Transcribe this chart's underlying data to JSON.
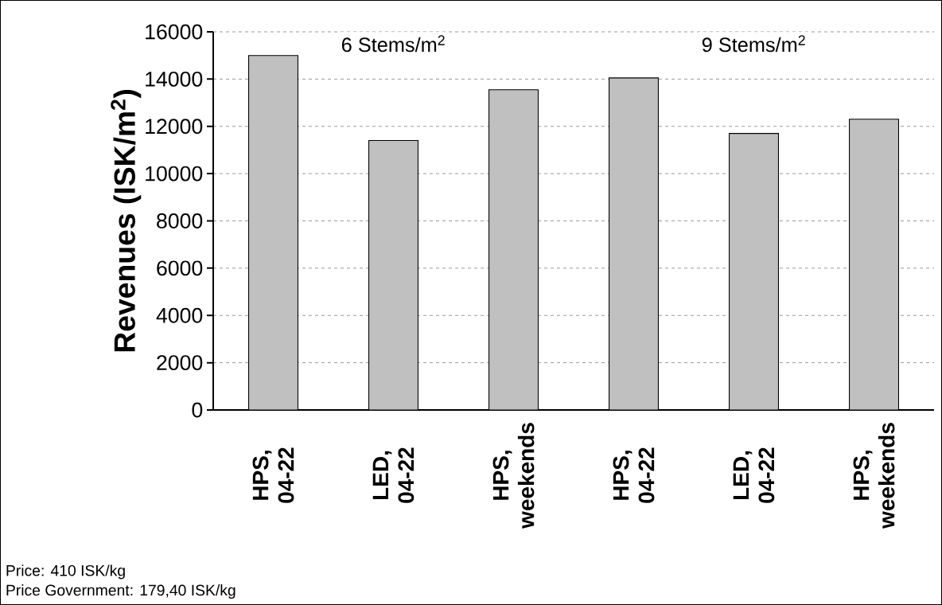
{
  "chart_data": {
    "type": "bar",
    "ylabel": "Revenues (ISK/m$^{2}$)",
    "categories": [
      "HPS, 04-22",
      "LED, 04-22",
      "HPS, weekends",
      "HPS, 04-22",
      "LED, 04-22",
      "HPS, weekends"
    ],
    "values": [
      15000,
      11400,
      13550,
      14050,
      11700,
      12300
    ],
    "color": "#c0c0c0",
    "ylim": [
      0,
      16000
    ],
    "yticks": [
      0,
      2000,
      4000,
      6000,
      8000,
      10000,
      12000,
      14000,
      16000
    ],
    "grid": "y",
    "annotations": [
      "6 Stems/m$^{2}$",
      "9 Stems/m$^{2}$",
      "Price: 410 ISK/kg",
      "Price Government: 179,40 ISK/kg"
    ]
  }
}
